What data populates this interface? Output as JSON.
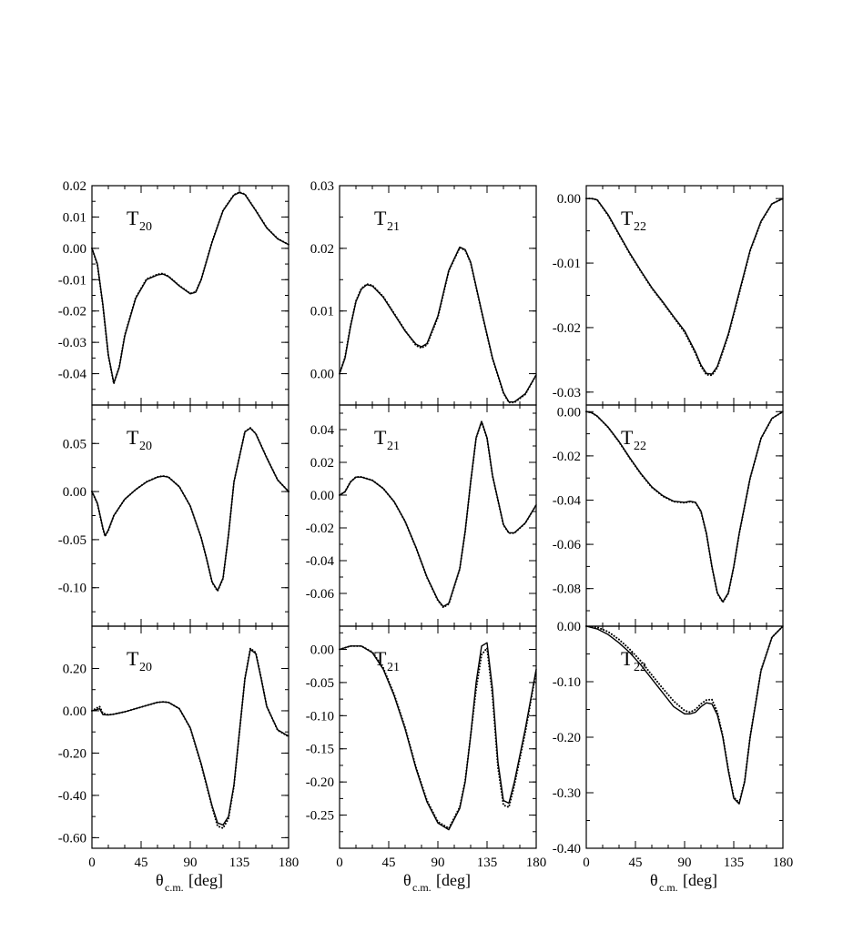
{
  "chart_data": {
    "type": "line",
    "layout": {
      "rows": 3,
      "cols": 3,
      "shared_x": true
    },
    "x_range": [
      0,
      180
    ],
    "x_ticks": [
      0,
      45,
      90,
      135,
      180
    ],
    "x_tick_labels": [
      "0",
      "45",
      "90",
      "135",
      "180"
    ],
    "x_axis_title": {
      "main": "θ",
      "sub": "c.m.",
      "unit": "[deg]"
    },
    "series_styles": [
      "solid",
      "dotted"
    ],
    "panels": [
      {
        "label": "T",
        "label_sub": "20",
        "row": 0,
        "col": 0,
        "ylim": [
          -0.05,
          0.02
        ],
        "yticks": [
          -0.04,
          -0.03,
          -0.02,
          -0.01,
          0.0,
          0.01,
          0.02
        ],
        "ytick_labels": [
          "-0.04",
          "-0.03",
          "-0.02",
          "-0.01",
          "0.00",
          "0.01",
          "0.02"
        ],
        "x": [
          0,
          5,
          10,
          15,
          20,
          25,
          30,
          40,
          50,
          60,
          65,
          70,
          80,
          90,
          95,
          100,
          110,
          120,
          130,
          135,
          140,
          150,
          160,
          170,
          180
        ],
        "series": [
          {
            "style": "solid",
            "values": [
              0.0,
              -0.005,
              -0.018,
              -0.034,
              -0.043,
              -0.038,
              -0.028,
              -0.016,
              -0.01,
              -0.0085,
              -0.0082,
              -0.009,
              -0.012,
              -0.0145,
              -0.014,
              -0.01,
              0.002,
              0.012,
              0.017,
              0.0178,
              0.0172,
              0.012,
              0.0065,
              0.003,
              0.0012
            ]
          },
          {
            "style": "dotted",
            "values": [
              0.0,
              -0.0052,
              -0.0182,
              -0.0342,
              -0.0432,
              -0.0378,
              -0.0278,
              -0.0158,
              -0.0098,
              -0.0083,
              -0.008,
              -0.0089,
              -0.0119,
              -0.0144,
              -0.0139,
              -0.0099,
              0.0021,
              0.0121,
              0.0171,
              0.0179,
              0.0173,
              0.0121,
              0.0066,
              0.0031,
              0.0012
            ]
          }
        ]
      },
      {
        "label": "T",
        "label_sub": "21",
        "row": 0,
        "col": 1,
        "ylim": [
          -0.005,
          0.03
        ],
        "yticks": [
          0.0,
          0.01,
          0.02,
          0.03
        ],
        "ytick_labels": [
          "0.00",
          "0.01",
          "0.02",
          "0.03"
        ],
        "x": [
          0,
          5,
          10,
          15,
          20,
          25,
          30,
          40,
          50,
          60,
          70,
          75,
          80,
          90,
          100,
          110,
          115,
          120,
          130,
          140,
          150,
          155,
          160,
          170,
          180
        ],
        "series": [
          {
            "style": "solid",
            "values": [
              0.0,
              0.0025,
              0.0075,
              0.0115,
              0.0135,
              0.0142,
              0.014,
              0.0122,
              0.0095,
              0.0068,
              0.0047,
              0.0043,
              0.0048,
              0.0092,
              0.0165,
              0.0202,
              0.0198,
              0.0178,
              0.01,
              0.0025,
              -0.003,
              -0.0045,
              -0.0045,
              -0.0032,
              -0.0002
            ]
          },
          {
            "style": "dotted",
            "values": [
              0.0,
              0.0026,
              0.0076,
              0.0116,
              0.0136,
              0.0143,
              0.0141,
              0.0123,
              0.0096,
              0.0069,
              0.0045,
              0.0041,
              0.0046,
              0.009,
              0.0164,
              0.0201,
              0.0197,
              0.0177,
              0.0099,
              0.0024,
              -0.0031,
              -0.0046,
              -0.0046,
              -0.0033,
              -0.0002
            ]
          }
        ]
      },
      {
        "label": "T",
        "label_sub": "22",
        "row": 0,
        "col": 2,
        "ylim": [
          -0.032,
          0.002
        ],
        "yticks": [
          -0.03,
          -0.02,
          -0.01,
          0.0
        ],
        "ytick_labels": [
          "-0.03",
          "-0.02",
          "-0.01",
          "0.00"
        ],
        "x": [
          0,
          5,
          10,
          20,
          30,
          40,
          50,
          60,
          70,
          80,
          90,
          100,
          105,
          110,
          115,
          120,
          130,
          140,
          150,
          160,
          170,
          180
        ],
        "series": [
          {
            "style": "solid",
            "values": [
              0.0,
              0.0,
              -0.0002,
              -0.0025,
              -0.0055,
              -0.0085,
              -0.0112,
              -0.0138,
              -0.016,
              -0.0183,
              -0.0205,
              -0.0238,
              -0.0258,
              -0.0271,
              -0.0272,
              -0.026,
              -0.021,
              -0.0145,
              -0.008,
              -0.0035,
              -0.0008,
              0.0
            ]
          },
          {
            "style": "dotted",
            "values": [
              0.0,
              0.0,
              -0.0002,
              -0.0026,
              -0.0056,
              -0.0086,
              -0.0113,
              -0.0139,
              -0.0161,
              -0.0184,
              -0.0207,
              -0.024,
              -0.026,
              -0.0273,
              -0.0274,
              -0.0262,
              -0.0212,
              -0.0147,
              -0.0081,
              -0.0036,
              -0.0008,
              0.0
            ]
          }
        ]
      },
      {
        "label": "T",
        "label_sub": "20",
        "row": 1,
        "col": 0,
        "ylim": [
          -0.14,
          0.09
        ],
        "yticks": [
          -0.1,
          -0.05,
          0.0,
          0.05
        ],
        "ytick_labels": [
          "-0.10",
          "-0.05",
          "0.00",
          "0.05"
        ],
        "x": [
          0,
          5,
          10,
          12,
          15,
          20,
          30,
          40,
          50,
          60,
          65,
          70,
          80,
          90,
          100,
          105,
          110,
          115,
          120,
          125,
          130,
          140,
          145,
          150,
          160,
          170,
          180
        ],
        "series": [
          {
            "style": "solid",
            "values": [
              0.0,
              -0.012,
              -0.038,
              -0.046,
              -0.04,
              -0.025,
              -0.008,
              0.002,
              0.01,
              0.015,
              0.016,
              0.015,
              0.005,
              -0.015,
              -0.048,
              -0.07,
              -0.094,
              -0.103,
              -0.09,
              -0.045,
              0.01,
              0.062,
              0.066,
              0.06,
              0.035,
              0.012,
              0.0
            ]
          },
          {
            "style": "dotted",
            "values": [
              0.0,
              -0.0125,
              -0.0385,
              -0.0465,
              -0.0405,
              -0.0252,
              -0.008,
              0.002,
              0.0102,
              0.0152,
              0.0162,
              0.0152,
              0.0051,
              -0.0151,
              -0.0482,
              -0.0702,
              -0.0945,
              -0.1035,
              -0.0905,
              -0.0452,
              0.0101,
              0.0622,
              0.0662,
              0.0602,
              0.0352,
              0.0121,
              0.0
            ]
          }
        ]
      },
      {
        "label": "T",
        "label_sub": "21",
        "row": 1,
        "col": 1,
        "ylim": [
          -0.08,
          0.055
        ],
        "yticks": [
          -0.06,
          -0.04,
          -0.02,
          0.0,
          0.02,
          0.04
        ],
        "ytick_labels": [
          "-0.06",
          "-0.04",
          "-0.02",
          "0.00",
          "0.02",
          "0.04"
        ],
        "x": [
          0,
          5,
          10,
          15,
          20,
          30,
          40,
          50,
          60,
          70,
          80,
          90,
          95,
          100,
          110,
          115,
          120,
          125,
          130,
          135,
          140,
          150,
          155,
          160,
          170,
          180
        ],
        "series": [
          {
            "style": "solid",
            "values": [
              0.0,
              0.002,
              0.008,
              0.011,
              0.011,
              0.009,
              0.004,
              -0.004,
              -0.016,
              -0.032,
              -0.05,
              -0.064,
              -0.068,
              -0.066,
              -0.045,
              -0.022,
              0.008,
              0.035,
              0.045,
              0.035,
              0.012,
              -0.018,
              -0.023,
              -0.023,
              -0.017,
              -0.006
            ]
          },
          {
            "style": "dotted",
            "values": [
              0.0,
              0.0021,
              0.0081,
              0.0111,
              0.0111,
              0.0091,
              0.0041,
              -0.0041,
              -0.0161,
              -0.0322,
              -0.0502,
              -0.0643,
              -0.0685,
              -0.0665,
              -0.0452,
              -0.0222,
              0.0078,
              0.0348,
              0.0448,
              0.0348,
              0.0118,
              -0.0182,
              -0.0232,
              -0.0232,
              -0.0171,
              -0.0061
            ]
          }
        ]
      },
      {
        "label": "T",
        "label_sub": "22",
        "row": 1,
        "col": 2,
        "ylim": [
          -0.097,
          0.003
        ],
        "yticks": [
          -0.08,
          -0.06,
          -0.04,
          -0.02,
          0.0
        ],
        "ytick_labels": [
          "-0.08",
          "-0.06",
          "-0.04",
          "-0.02",
          "0.00"
        ],
        "x": [
          0,
          5,
          10,
          20,
          30,
          40,
          50,
          60,
          70,
          80,
          90,
          95,
          100,
          105,
          110,
          115,
          120,
          125,
          130,
          135,
          140,
          150,
          160,
          170,
          180
        ],
        "series": [
          {
            "style": "solid",
            "values": [
              0.0,
              -0.0005,
              -0.002,
              -0.007,
              -0.0135,
              -0.021,
              -0.028,
              -0.034,
              -0.038,
              -0.0405,
              -0.041,
              -0.0405,
              -0.041,
              -0.045,
              -0.055,
              -0.07,
              -0.082,
              -0.086,
              -0.082,
              -0.07,
              -0.055,
              -0.03,
              -0.012,
              -0.003,
              0.0
            ]
          },
          {
            "style": "dotted",
            "values": [
              0.0,
              -0.0005,
              -0.0021,
              -0.0071,
              -0.0137,
              -0.0212,
              -0.0282,
              -0.0342,
              -0.0382,
              -0.0407,
              -0.0412,
              -0.0407,
              -0.0412,
              -0.0452,
              -0.0552,
              -0.0702,
              -0.0822,
              -0.0862,
              -0.0822,
              -0.0702,
              -0.0552,
              -0.0301,
              -0.0121,
              -0.0031,
              0.0
            ]
          }
        ]
      },
      {
        "label": "T",
        "label_sub": "20",
        "row": 2,
        "col": 0,
        "ylim": [
          -0.65,
          0.4
        ],
        "yticks": [
          -0.6,
          -0.4,
          -0.2,
          0.0,
          0.2
        ],
        "ytick_labels": [
          "-0.60",
          "-0.40",
          "-0.20",
          "0.00",
          "0.20"
        ],
        "x": [
          0,
          4,
          7,
          10,
          15,
          20,
          30,
          40,
          50,
          60,
          65,
          70,
          80,
          90,
          100,
          110,
          115,
          120,
          125,
          130,
          135,
          140,
          145,
          150,
          155,
          160,
          170,
          180
        ],
        "series": [
          {
            "style": "solid",
            "values": [
              0.0,
              0.005,
              0.01,
              -0.018,
              -0.02,
              -0.016,
              -0.005,
              0.01,
              0.025,
              0.04,
              0.042,
              0.04,
              0.01,
              -0.08,
              -0.25,
              -0.45,
              -0.53,
              -0.54,
              -0.5,
              -0.35,
              -0.1,
              0.15,
              0.29,
              0.27,
              0.15,
              0.02,
              -0.09,
              -0.12
            ]
          },
          {
            "style": "dotted",
            "values": [
              0.0,
              0.012,
              0.02,
              -0.012,
              -0.019,
              -0.016,
              -0.005,
              0.01,
              0.025,
              0.04,
              0.042,
              0.04,
              0.01,
              -0.082,
              -0.255,
              -0.455,
              -0.545,
              -0.555,
              -0.51,
              -0.355,
              -0.102,
              0.152,
              0.295,
              0.275,
              0.152,
              0.021,
              -0.092,
              -0.122
            ]
          }
        ]
      },
      {
        "label": "T",
        "label_sub": "21",
        "row": 2,
        "col": 1,
        "ylim": [
          -0.3,
          0.035
        ],
        "yticks": [
          -0.25,
          -0.2,
          -0.15,
          -0.1,
          -0.05,
          0.0
        ],
        "ytick_labels": [
          "-0.25",
          "-0.20",
          "-0.15",
          "-0.10",
          "-0.05",
          "0.00"
        ],
        "x": [
          0,
          10,
          20,
          30,
          40,
          50,
          60,
          70,
          80,
          90,
          100,
          110,
          115,
          120,
          125,
          130,
          135,
          140,
          145,
          150,
          155,
          160,
          170,
          180
        ],
        "series": [
          {
            "style": "solid",
            "values": [
              0.0,
              0.005,
              0.005,
              -0.005,
              -0.03,
              -0.07,
              -0.12,
              -0.18,
              -0.23,
              -0.262,
              -0.272,
              -0.24,
              -0.2,
              -0.13,
              -0.05,
              0.005,
              0.01,
              -0.06,
              -0.17,
              -0.228,
              -0.232,
              -0.2,
              -0.12,
              -0.03
            ]
          },
          {
            "style": "dotted",
            "values": [
              0.0,
              0.005,
              0.005,
              -0.004,
              -0.028,
              -0.068,
              -0.118,
              -0.178,
              -0.228,
              -0.26,
              -0.27,
              -0.238,
              -0.198,
              -0.13,
              -0.06,
              -0.008,
              0.002,
              -0.07,
              -0.178,
              -0.235,
              -0.238,
              -0.205,
              -0.125,
              -0.032
            ]
          }
        ]
      },
      {
        "label": "T",
        "label_sub": "22",
        "row": 2,
        "col": 2,
        "ylim": [
          -0.4,
          0.0
        ],
        "yticks": [
          -0.4,
          -0.3,
          -0.2,
          -0.1,
          0.0
        ],
        "ytick_labels": [
          "-0.40",
          "-0.30",
          "-0.20",
          "-0.10",
          "0.00"
        ],
        "x": [
          0,
          10,
          20,
          30,
          40,
          50,
          60,
          70,
          80,
          90,
          95,
          100,
          105,
          110,
          115,
          120,
          125,
          130,
          135,
          140,
          145,
          150,
          160,
          170,
          180
        ],
        "series": [
          {
            "style": "solid",
            "values": [
              0.0,
              -0.005,
              -0.015,
              -0.03,
              -0.048,
              -0.07,
              -0.095,
              -0.12,
              -0.145,
              -0.158,
              -0.158,
              -0.155,
              -0.145,
              -0.138,
              -0.14,
              -0.16,
              -0.2,
              -0.26,
              -0.31,
              -0.32,
              -0.28,
              -0.2,
              -0.08,
              -0.02,
              0.0
            ]
          },
          {
            "style": "dotted",
            "values": [
              0.0,
              -0.002,
              -0.01,
              -0.024,
              -0.042,
              -0.063,
              -0.088,
              -0.112,
              -0.135,
              -0.152,
              -0.155,
              -0.15,
              -0.14,
              -0.133,
              -0.132,
              -0.155,
              -0.198,
              -0.258,
              -0.308,
              -0.318,
              -0.279,
              -0.199,
              -0.079,
              -0.02,
              0.0
            ]
          }
        ]
      }
    ]
  }
}
